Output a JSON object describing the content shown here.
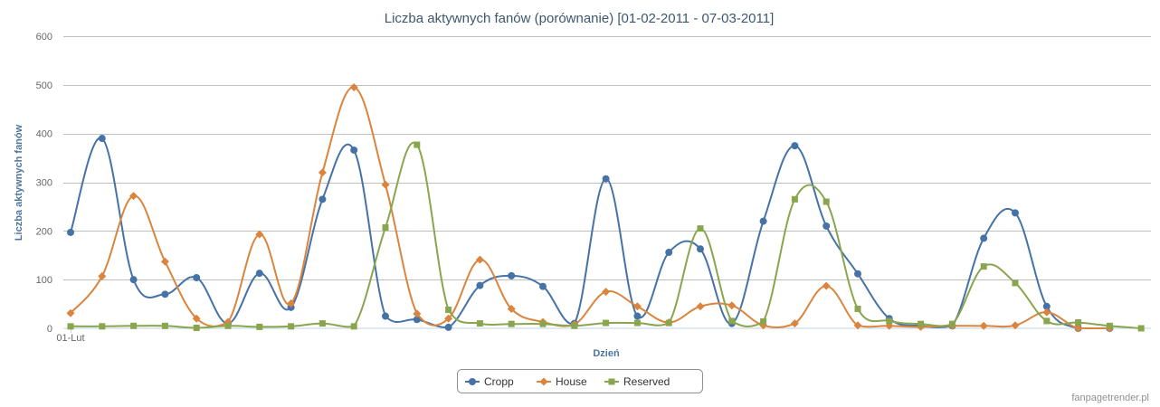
{
  "chart_data": {
    "type": "line",
    "title": "Liczba aktywnych fanów (porównanie) [01-02-2011 - 07-03-2011]",
    "xlabel": "Dzień",
    "ylabel": "Liczba aktywnych fanów",
    "ylim": [
      0,
      600
    ],
    "yticks": [
      "0",
      "100",
      "200",
      "300",
      "400",
      "500",
      "600"
    ],
    "x_first_label": "01-Lut",
    "grid": true,
    "legend_placement": "bottom-center",
    "credit": "fanpagetrender.pl",
    "series": [
      {
        "name": "Cropp",
        "color": "#4572a7",
        "marker": "circle",
        "values": [
          197,
          390,
          100,
          70,
          104,
          10,
          113,
          43,
          265,
          366,
          25,
          18,
          2,
          88,
          108,
          86,
          10,
          307,
          25,
          156,
          163,
          10,
          220,
          375,
          210,
          112,
          20,
          5,
          5,
          185,
          237,
          45,
          0,
          0,
          null,
          null
        ]
      },
      {
        "name": "House",
        "color": "#db843d",
        "marker": "diamond",
        "values": [
          31,
          107,
          272,
          137,
          20,
          13,
          193,
          51,
          320,
          495,
          295,
          30,
          20,
          141,
          40,
          13,
          8,
          75,
          45,
          12,
          45,
          47,
          6,
          10,
          87,
          6,
          5,
          3,
          5,
          5,
          6,
          33,
          0,
          0,
          null,
          null
        ]
      },
      {
        "name": "Reserved",
        "color": "#89a54e",
        "marker": "square",
        "values": [
          4,
          4,
          5,
          5,
          1,
          5,
          3,
          4,
          10,
          4,
          207,
          377,
          38,
          10,
          9,
          9,
          5,
          11,
          11,
          11,
          205,
          15,
          14,
          265,
          260,
          40,
          15,
          9,
          9,
          127,
          93,
          15,
          12,
          5,
          0,
          null
        ]
      }
    ]
  }
}
